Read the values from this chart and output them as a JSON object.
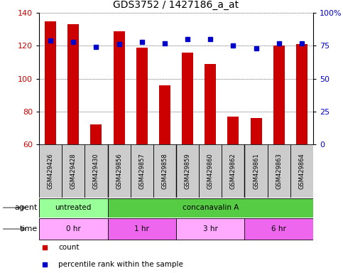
{
  "title": "GDS3752 / 1427186_a_at",
  "samples": [
    "GSM429426",
    "GSM429428",
    "GSM429430",
    "GSM429856",
    "GSM429857",
    "GSM429858",
    "GSM429859",
    "GSM429860",
    "GSM429862",
    "GSM429861",
    "GSM429863",
    "GSM429864"
  ],
  "count_values": [
    135,
    133,
    72,
    129,
    119,
    96,
    116,
    109,
    77,
    76,
    120,
    121
  ],
  "percentile_values": [
    79,
    78,
    74,
    76,
    78,
    77,
    80,
    80,
    75,
    73,
    77,
    77
  ],
  "ylim_left": [
    60,
    140
  ],
  "ylim_right": [
    0,
    100
  ],
  "yticks_left": [
    60,
    80,
    100,
    120,
    140
  ],
  "yticks_right": [
    0,
    25,
    50,
    75,
    100
  ],
  "ytick_labels_right": [
    "0",
    "25",
    "50",
    "75",
    "100%"
  ],
  "bar_color": "#cc0000",
  "dot_color": "#0000cc",
  "agent_row": [
    {
      "label": "untreated",
      "start": 0,
      "end": 3,
      "color": "#99ff99"
    },
    {
      "label": "concanavalin A",
      "start": 3,
      "end": 12,
      "color": "#55cc44"
    }
  ],
  "time_row": [
    {
      "label": "0 hr",
      "start": 0,
      "end": 3,
      "color": "#ffaaff"
    },
    {
      "label": "1 hr",
      "start": 3,
      "end": 6,
      "color": "#ee66ee"
    },
    {
      "label": "3 hr",
      "start": 6,
      "end": 9,
      "color": "#ffaaff"
    },
    {
      "label": "6 hr",
      "start": 9,
      "end": 12,
      "color": "#ee66ee"
    }
  ],
  "sample_box_color": "#cccccc",
  "legend_items": [
    {
      "label": "count",
      "color": "#cc0000"
    },
    {
      "label": "percentile rank within the sample",
      "color": "#0000cc"
    }
  ],
  "group_borders": [
    3,
    6,
    9
  ]
}
